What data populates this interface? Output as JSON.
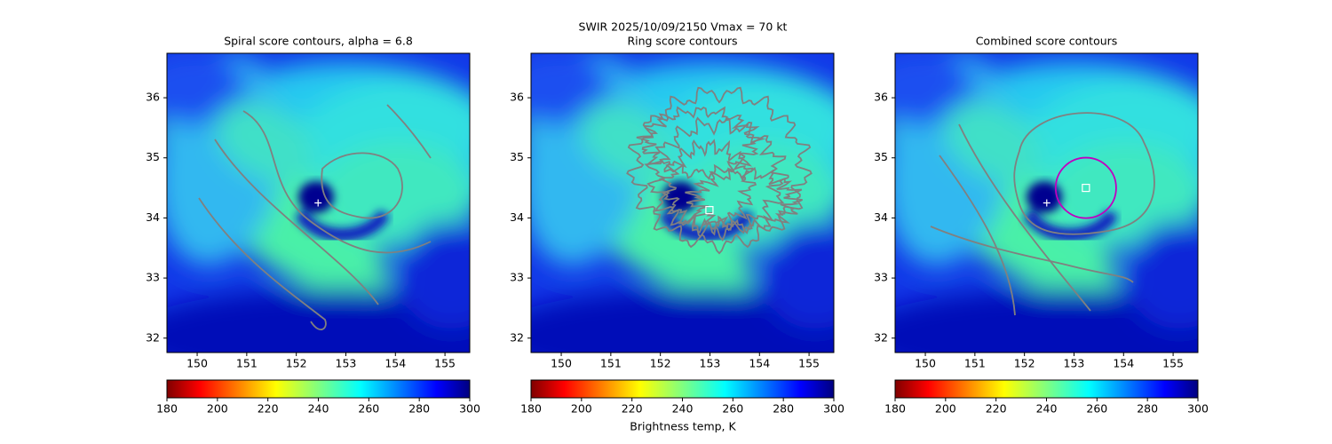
{
  "suptitle": "SWIR  2025/10/09/2150    Vmax = 70 kt",
  "colorbar_label": "Brightness temp, K",
  "chart_data": [
    {
      "type": "heatmap",
      "title": "Spiral score contours, alpha =  6.8",
      "xlim": [
        149.39,
        155.5
      ],
      "ylim": [
        31.76,
        36.74
      ],
      "xticks": [
        150,
        151,
        152,
        153,
        154,
        155
      ],
      "yticks": [
        32,
        33,
        34,
        35,
        36
      ],
      "colormap": "jet_r",
      "clim": [
        180,
        300
      ],
      "cticks": [
        180,
        200,
        220,
        240,
        260,
        280,
        300
      ],
      "contour_color": "#808080",
      "markers": [
        {
          "x": 152.44,
          "y": 34.25,
          "shape": "plus",
          "color": "#ffffff"
        }
      ]
    },
    {
      "type": "heatmap",
      "title": "Ring score contours",
      "xlim": [
        149.39,
        155.5
      ],
      "ylim": [
        31.76,
        36.74
      ],
      "xticks": [
        150,
        151,
        152,
        153,
        154,
        155
      ],
      "yticks": [
        32,
        33,
        34,
        35,
        36
      ],
      "colormap": "jet_r",
      "clim": [
        180,
        300
      ],
      "cticks": [
        180,
        200,
        220,
        240,
        260,
        280,
        300
      ],
      "contour_color": "#808080",
      "markers": [
        {
          "x": 152.99,
          "y": 34.13,
          "shape": "square",
          "color": "#ffffff"
        }
      ]
    },
    {
      "type": "heatmap",
      "title": "Combined score contours",
      "xlim": [
        149.39,
        155.5
      ],
      "ylim": [
        31.76,
        36.74
      ],
      "xticks": [
        150,
        151,
        152,
        153,
        154,
        155
      ],
      "yticks": [
        32,
        33,
        34,
        35,
        36
      ],
      "colormap": "jet_r",
      "clim": [
        180,
        300
      ],
      "cticks": [
        180,
        200,
        220,
        240,
        260,
        280,
        300
      ],
      "contour_color": "#808080",
      "markers": [
        {
          "x": 152.45,
          "y": 34.25,
          "shape": "plus",
          "color": "#ffffff"
        },
        {
          "x": 153.24,
          "y": 34.5,
          "shape": "square",
          "color": "#ffffff"
        }
      ],
      "circle": {
        "x": 153.24,
        "y": 34.5,
        "radius": 0.61,
        "color": "#c000c0"
      }
    }
  ]
}
